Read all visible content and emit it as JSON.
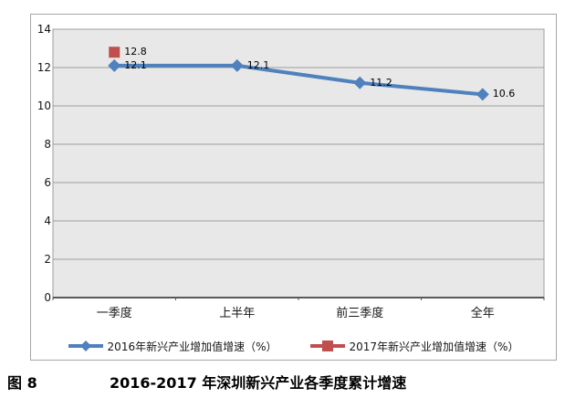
{
  "figure": {
    "label": "图 8",
    "title": "2016-2017 年深圳新兴产业各季度累计增速"
  },
  "chart_data": {
    "type": "line",
    "title": "",
    "xlabel": "",
    "ylabel": "",
    "categories": [
      "一季度",
      "上半年",
      "前三季度",
      "全年"
    ],
    "series": [
      {
        "name": "2016年新兴产业增加值增速（%）",
        "marker": "diamond",
        "color": "#4F81BD",
        "values": [
          12.1,
          12.1,
          11.2,
          10.6
        ]
      },
      {
        "name": "2017年新兴产业增加值增速（%）",
        "marker": "square",
        "color": "#C0504D",
        "values": [
          12.8,
          null,
          null,
          null
        ]
      }
    ],
    "data_labels": [
      "12.8",
      "12.1",
      "12.1",
      "11.2",
      "10.6"
    ],
    "ylim": [
      0,
      14
    ],
    "y_ticks": [
      0,
      2,
      4,
      6,
      8,
      10,
      12,
      14
    ],
    "grid": true,
    "legend_position": "bottom",
    "colors": {
      "plot_bg": "#E8E8E8",
      "gridline": "#9E9E9E",
      "plot_border": "#9E9E9E",
      "x_axis": "#595959",
      "frame_border": "#A6A6A6"
    }
  }
}
